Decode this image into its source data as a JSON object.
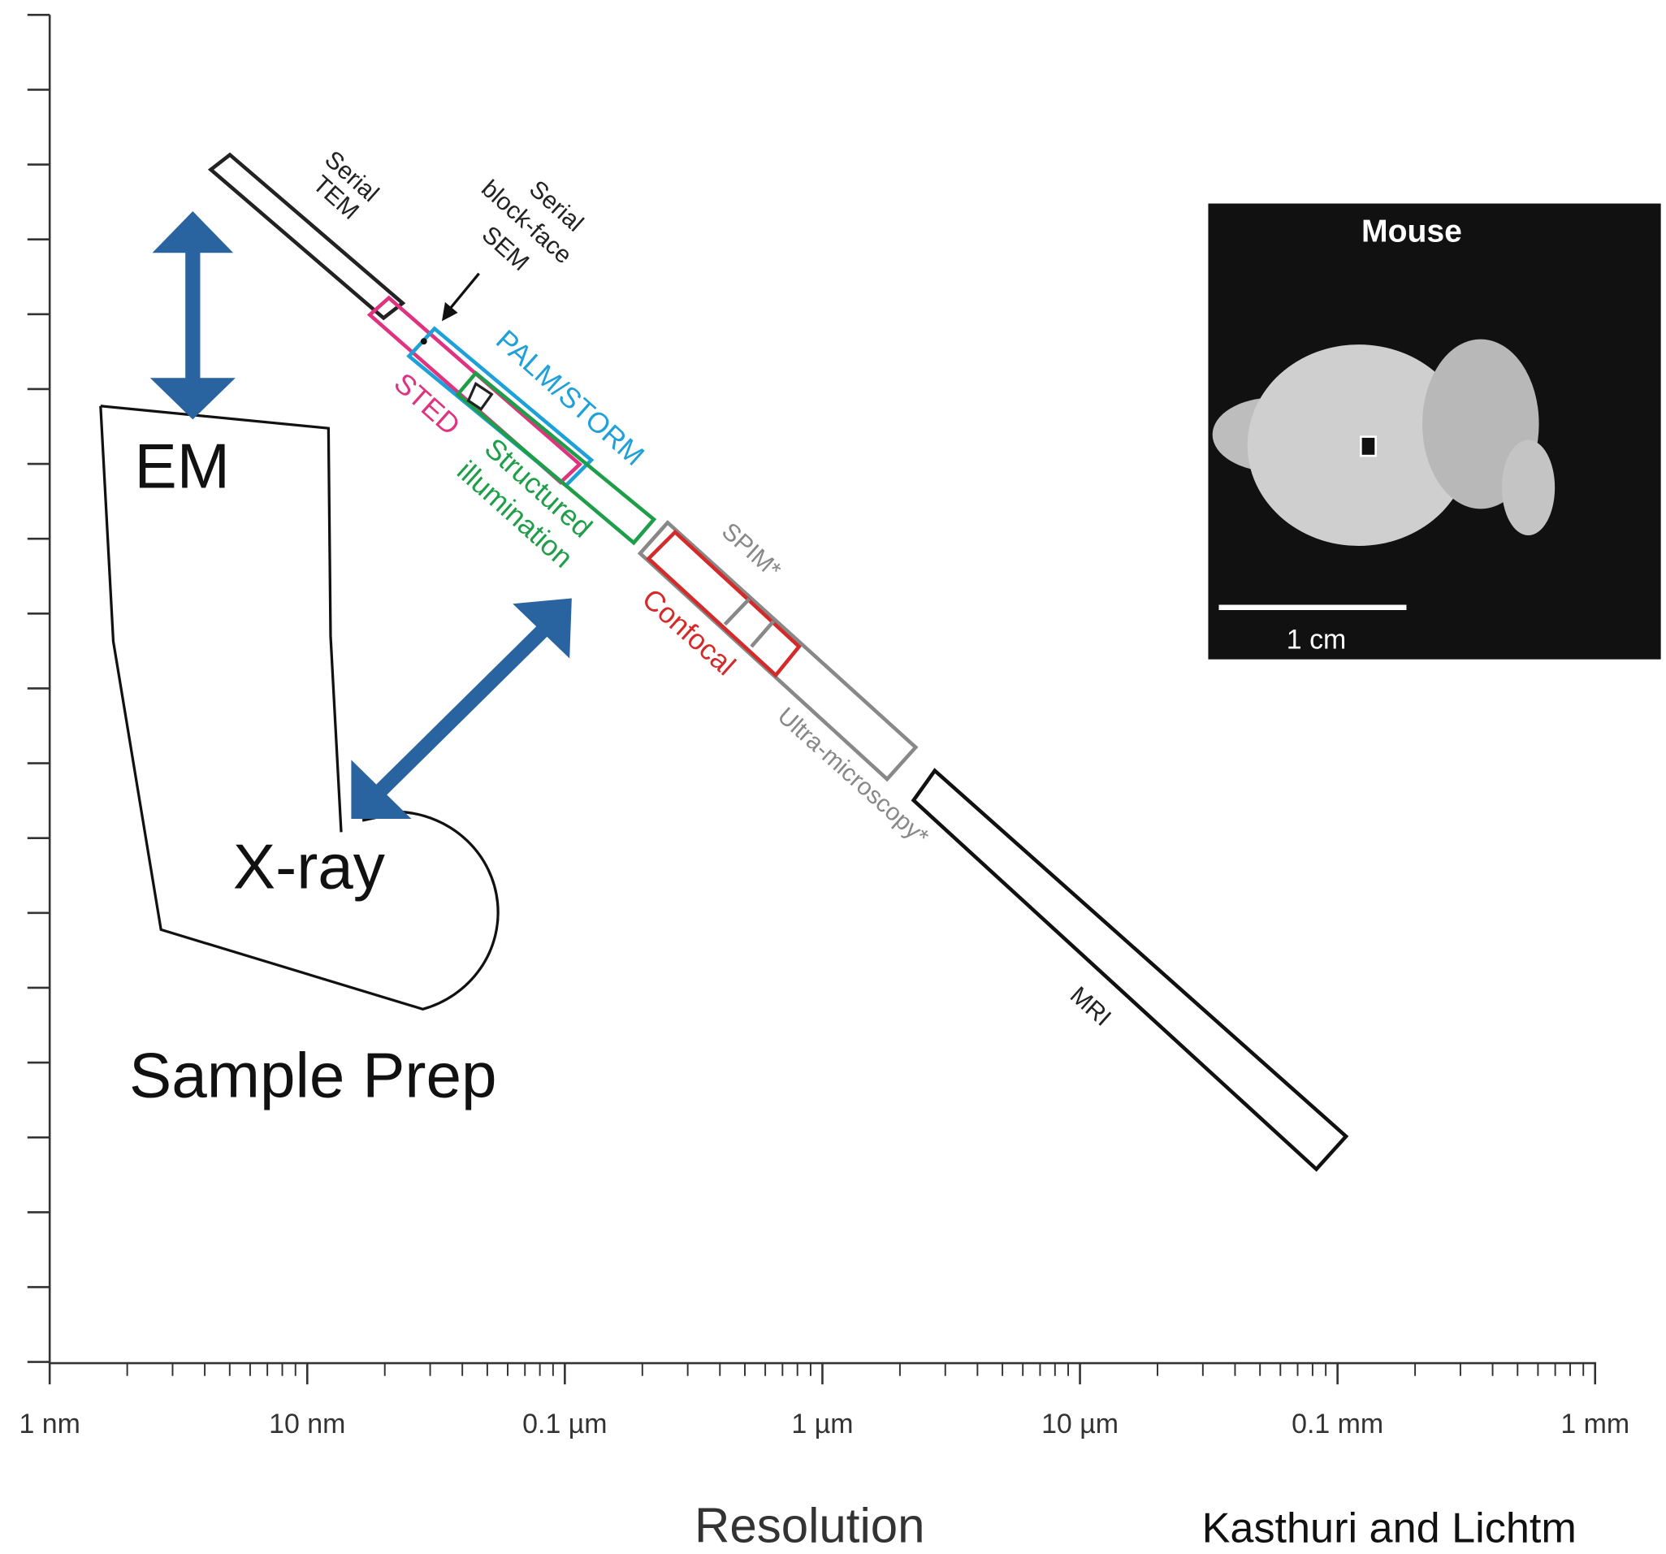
{
  "axis": {
    "tick_labels": [
      "1 nm",
      "10 nm",
      "0.1 µm",
      "1 µm",
      "10 µm",
      "0.1 mm",
      "1 mm"
    ],
    "title": "Resolution"
  },
  "methods": {
    "serial_tem": [
      "Serial",
      "TEM"
    ],
    "sbfsem": [
      "Serial",
      "block-face",
      "SEM"
    ],
    "palm_storm": "PALM/STORM",
    "sted": "STED",
    "structured": [
      "Structured",
      "illumination"
    ],
    "spim": "SPIM*",
    "confocal": "Confocal",
    "ultra": "Ultra-microscopy*",
    "mri": "MRI"
  },
  "overlay": {
    "em": "EM",
    "xray": "X-ray",
    "sample_prep": "Sample Prep"
  },
  "inset": {
    "title": "Mouse",
    "scale": "1 cm"
  },
  "credit": "Kasthuri and Lichtm"
}
